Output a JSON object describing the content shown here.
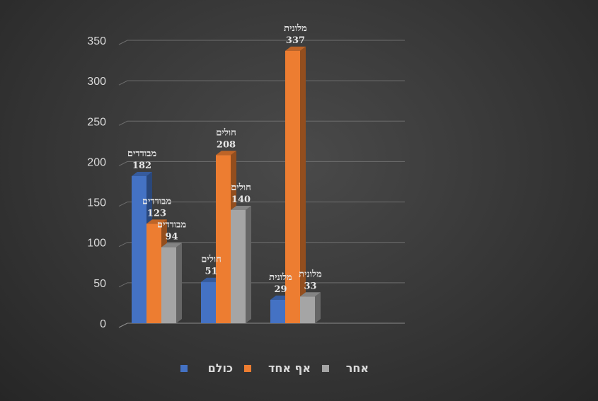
{
  "chart_data": {
    "type": "bar",
    "style": "3d-clustered-column",
    "ylim": [
      0,
      350
    ],
    "y_ticks": [
      0,
      50,
      100,
      150,
      200,
      250,
      300,
      350
    ],
    "grid": true,
    "legend_position": "bottom",
    "series": [
      {
        "name": "כולם",
        "color": "#4472c4",
        "values": [
          182,
          51,
          29
        ],
        "labels": [
          "מבודדים",
          "חולים",
          "מלונית"
        ]
      },
      {
        "name": "אף אחד",
        "color": "#ed7d31",
        "values": [
          123,
          208,
          337
        ],
        "labels": [
          "מבודדים",
          "חולים",
          "מלונית"
        ]
      },
      {
        "name": "אחר",
        "color": "#a5a5a5",
        "values": [
          94,
          140,
          33
        ],
        "labels": [
          "מבודדים",
          "חולים",
          "מלונית"
        ]
      }
    ]
  }
}
